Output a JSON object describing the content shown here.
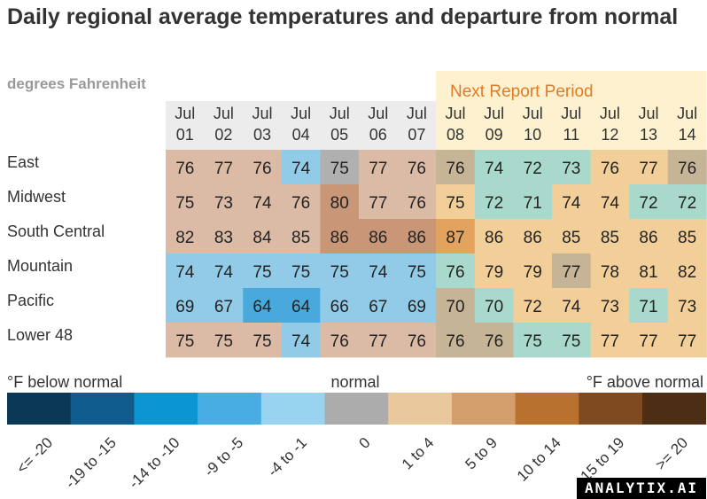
{
  "title": "Daily regional average temperatures and departure from normal",
  "subtitle": "degrees Fahrenheit",
  "watermark": "ANALYTIX.AI",
  "chart_data": {
    "type": "heatmap",
    "highlight_label": "Next Report Period",
    "highlight_start_index": 7,
    "columns": [
      {
        "month": "Jul",
        "day": "01"
      },
      {
        "month": "Jul",
        "day": "02"
      },
      {
        "month": "Jul",
        "day": "03"
      },
      {
        "month": "Jul",
        "day": "04"
      },
      {
        "month": "Jul",
        "day": "05"
      },
      {
        "month": "Jul",
        "day": "06"
      },
      {
        "month": "Jul",
        "day": "07"
      },
      {
        "month": "Jul",
        "day": "08"
      },
      {
        "month": "Jul",
        "day": "09"
      },
      {
        "month": "Jul",
        "day": "10"
      },
      {
        "month": "Jul",
        "day": "11"
      },
      {
        "month": "Jul",
        "day": "12"
      },
      {
        "month": "Jul",
        "day": "13"
      },
      {
        "month": "Jul",
        "day": "14"
      }
    ],
    "rows": [
      {
        "region": "East",
        "values": [
          76,
          77,
          76,
          74,
          75,
          77,
          76,
          76,
          74,
          72,
          73,
          76,
          77,
          76
        ],
        "colors": [
          "#dbbba6",
          "#dbbba6",
          "#dbbba6",
          "#92cbe8",
          "#b0b0b0",
          "#dbbba6",
          "#dbbba6",
          "#c5b495",
          "#a9d9cc",
          "#a9d9cc",
          "#a9d9cc",
          "#f2cf98",
          "#f2cf98",
          "#c5b495"
        ]
      },
      {
        "region": "Midwest",
        "values": [
          75,
          73,
          74,
          76,
          80,
          77,
          76,
          75,
          72,
          71,
          74,
          74,
          72,
          72
        ],
        "colors": [
          "#dbbba6",
          "#dbbba6",
          "#dbbba6",
          "#dbbba6",
          "#c99777",
          "#dbbba6",
          "#dbbba6",
          "#f2cf98",
          "#a9d9cc",
          "#a9d9cc",
          "#f2cf98",
          "#f2cf98",
          "#a9d9cc",
          "#a9d9cc"
        ]
      },
      {
        "region": "South Central",
        "values": [
          82,
          83,
          84,
          85,
          86,
          86,
          86,
          87,
          86,
          86,
          85,
          85,
          86,
          85
        ],
        "colors": [
          "#dbbba6",
          "#dbbba6",
          "#dbbba6",
          "#dbbba6",
          "#c99777",
          "#c99777",
          "#c99777",
          "#e3a35f",
          "#f2cf98",
          "#f2cf98",
          "#f2cf98",
          "#f2cf98",
          "#f2cf98",
          "#f2cf98"
        ]
      },
      {
        "region": "Mountain",
        "values": [
          74,
          74,
          75,
          75,
          75,
          74,
          75,
          76,
          79,
          79,
          77,
          78,
          81,
          82
        ],
        "colors": [
          "#92cbe8",
          "#92cbe8",
          "#92cbe8",
          "#92cbe8",
          "#92cbe8",
          "#92cbe8",
          "#92cbe8",
          "#a9d9cc",
          "#f2cf98",
          "#f2cf98",
          "#c5b495",
          "#f2cf98",
          "#f2cf98",
          "#f2cf98"
        ]
      },
      {
        "region": "Pacific",
        "values": [
          69,
          67,
          64,
          64,
          66,
          67,
          69,
          70,
          70,
          72,
          74,
          73,
          71,
          73
        ],
        "colors": [
          "#92cbe8",
          "#92cbe8",
          "#4aa9dc",
          "#4aa9dc",
          "#92cbe8",
          "#92cbe8",
          "#92cbe8",
          "#c5b495",
          "#a9d9cc",
          "#f2cf98",
          "#f2cf98",
          "#f2cf98",
          "#a9d9cc",
          "#f2cf98"
        ]
      },
      {
        "region": "Lower 48",
        "values": [
          75,
          75,
          75,
          74,
          76,
          77,
          76,
          76,
          76,
          75,
          75,
          77,
          77,
          77
        ],
        "colors": [
          "#dbbba6",
          "#dbbba6",
          "#dbbba6",
          "#92cbe8",
          "#dbbba6",
          "#dbbba6",
          "#dbbba6",
          "#c5b495",
          "#c5b495",
          "#a9d9cc",
          "#a9d9cc",
          "#f2cf98",
          "#f2cf98",
          "#f2cf98"
        ]
      }
    ],
    "legend": {
      "placement": "bottom",
      "label_below": "°F below normal",
      "label_normal": "normal",
      "label_above": "°F above normal",
      "bins": [
        {
          "label": "<= -20",
          "color": "#0a3856"
        },
        {
          "label": "-19 to -15",
          "color": "#0f5c8d"
        },
        {
          "label": "-14 to -10",
          "color": "#0b95d3"
        },
        {
          "label": "-9 to -5",
          "color": "#47ade2"
        },
        {
          "label": "-4 to -1",
          "color": "#98d4ef"
        },
        {
          "label": "0",
          "color": "#acacac"
        },
        {
          "label": "1 to 4",
          "color": "#e9c89c"
        },
        {
          "label": "5 to 9",
          "color": "#d39e6c"
        },
        {
          "label": "10 to 14",
          "color": "#b9712f"
        },
        {
          "label": "15 to 19",
          "color": "#7f4a1f"
        },
        {
          "label": ">= 20",
          "color": "#4b2e14"
        }
      ]
    }
  }
}
